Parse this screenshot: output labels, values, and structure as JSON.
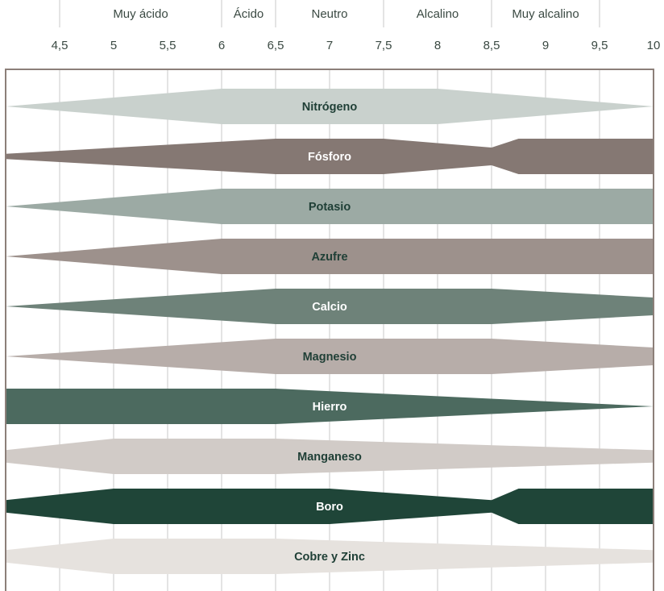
{
  "chart_data": {
    "type": "area",
    "x_axis": {
      "ticks": [
        "4,5",
        "5",
        "5,5",
        "6",
        "6,5",
        "7",
        "7,5",
        "8",
        "8,5",
        "9",
        "9,5",
        "10"
      ],
      "range": [
        4,
        10
      ]
    },
    "categories": [
      {
        "label": "Muy ácido",
        "from": 4.5,
        "to": 6
      },
      {
        "label": "Ácido",
        "from": 6,
        "to": 6.5
      },
      {
        "label": "Neutro",
        "from": 6.5,
        "to": 7.5
      },
      {
        "label": "Alcalino",
        "from": 7.5,
        "to": 8.5
      },
      {
        "label": "Muy alcalino",
        "from": 8.5,
        "to": 9.5
      }
    ],
    "series": [
      {
        "name": "Nitrógeno",
        "color": "#c9d1cd",
        "text_color": "#1f3f36",
        "profile": [
          [
            4,
            0
          ],
          [
            6,
            1
          ],
          [
            8,
            1
          ],
          [
            10,
            0
          ]
        ]
      },
      {
        "name": "Fósforo",
        "color": "#857873",
        "text_color": "#ffffff",
        "profile": [
          [
            4,
            0.15
          ],
          [
            6.5,
            1
          ],
          [
            7.5,
            1
          ],
          [
            8.5,
            0.5
          ],
          [
            8.75,
            1
          ],
          [
            10,
            1
          ]
        ]
      },
      {
        "name": "Potasio",
        "color": "#9caaa4",
        "text_color": "#1f3f36",
        "profile": [
          [
            4,
            0
          ],
          [
            6,
            1
          ],
          [
            10,
            1
          ]
        ]
      },
      {
        "name": "Azufre",
        "color": "#9d918c",
        "text_color": "#1f3f36",
        "profile": [
          [
            4,
            0
          ],
          [
            6,
            1
          ],
          [
            10,
            1
          ]
        ]
      },
      {
        "name": "Calcio",
        "color": "#6e8279",
        "text_color": "#ffffff",
        "profile": [
          [
            4,
            0
          ],
          [
            6.5,
            1
          ],
          [
            8.5,
            1
          ],
          [
            10,
            0.5
          ]
        ]
      },
      {
        "name": "Magnesio",
        "color": "#b7ada9",
        "text_color": "#1f3f36",
        "profile": [
          [
            4,
            0
          ],
          [
            6.5,
            1
          ],
          [
            8.5,
            1
          ],
          [
            10,
            0.5
          ]
        ]
      },
      {
        "name": "Hierro",
        "color": "#4c6a5f",
        "text_color": "#ffffff",
        "profile": [
          [
            4,
            1
          ],
          [
            6.5,
            1
          ],
          [
            10,
            0
          ]
        ]
      },
      {
        "name": "Manganeso",
        "color": "#d1cbc7",
        "text_color": "#1f3f36",
        "profile": [
          [
            4,
            0.35
          ],
          [
            5,
            1
          ],
          [
            6.5,
            1
          ],
          [
            10,
            0.35
          ]
        ]
      },
      {
        "name": "Boro",
        "color": "#1f4538",
        "text_color": "#ffffff",
        "profile": [
          [
            4,
            0.35
          ],
          [
            5,
            1
          ],
          [
            7,
            1
          ],
          [
            8.5,
            0.35
          ],
          [
            8.75,
            1
          ],
          [
            10,
            1
          ]
        ]
      },
      {
        "name": "Cobre y Zinc",
        "color": "#e6e2de",
        "text_color": "#1f3f36",
        "profile": [
          [
            4,
            0.35
          ],
          [
            5,
            1
          ],
          [
            6.5,
            1
          ],
          [
            10,
            0.35
          ]
        ]
      }
    ],
    "grid": true,
    "frame_color": "#8c7f79",
    "grid_color": "#c9c9c9"
  }
}
